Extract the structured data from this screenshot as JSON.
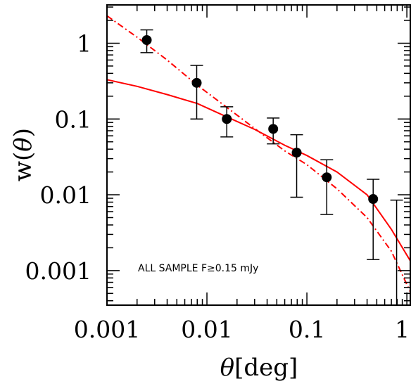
{
  "chart_data": {
    "type": "scatter",
    "xlabel_symbol": "θ",
    "xlabel_unit": "[deg]",
    "ylabel_prefix": "w(",
    "ylabel_symbol": "θ",
    "ylabel_suffix": ")",
    "x_scale": "log",
    "y_scale": "log",
    "xlim": [
      0.001,
      1.1
    ],
    "ylim": [
      0.00035,
      3.2
    ],
    "x_ticks": [
      {
        "value": 0.001,
        "label": "0.001"
      },
      {
        "value": 0.01,
        "label": "0.01"
      },
      {
        "value": 0.1,
        "label": "0.1"
      },
      {
        "value": 1,
        "label": "1"
      }
    ],
    "y_ticks": [
      {
        "value": 1,
        "label": "1"
      },
      {
        "value": 0.1,
        "label": "0.1"
      },
      {
        "value": 0.01,
        "label": "0.01"
      },
      {
        "value": 0.001,
        "label": "0.001"
      }
    ],
    "grid": false,
    "annotation": "ALL SAMPLE F≥0.15 mJy",
    "points": [
      {
        "x": 0.0025,
        "y": 1.1,
        "err_low": 0.75,
        "err_high": 1.5
      },
      {
        "x": 0.0079,
        "y": 0.3,
        "err_low": 0.1,
        "err_high": 0.51
      },
      {
        "x": 0.0158,
        "y": 0.1,
        "err_low": 0.058,
        "err_high": 0.145
      },
      {
        "x": 0.046,
        "y": 0.074,
        "err_low": 0.047,
        "err_high": 0.103
      },
      {
        "x": 0.079,
        "y": 0.036,
        "err_low": 0.0093,
        "err_high": 0.062
      },
      {
        "x": 0.158,
        "y": 0.017,
        "err_low": 0.0055,
        "err_high": 0.029
      },
      {
        "x": 0.46,
        "y": 0.0088,
        "err_low": 0.0014,
        "err_high": 0.016
      },
      {
        "x": 0.79,
        "y": null,
        "err_low": null,
        "err_high": 0.0085
      }
    ],
    "series": [
      {
        "style": "solid",
        "color": "#ff0000",
        "x": [
          0.001,
          0.002,
          0.004,
          0.008,
          0.015,
          0.03,
          0.06,
          0.1,
          0.2,
          0.4,
          0.7,
          1.1
        ],
        "y": [
          0.33,
          0.27,
          0.21,
          0.16,
          0.11,
          0.073,
          0.045,
          0.033,
          0.02,
          0.01,
          0.0035,
          0.0013
        ]
      },
      {
        "style": "dashed",
        "color": "#ff0000",
        "x": [
          0.001,
          0.002,
          0.004,
          0.008,
          0.015,
          0.03,
          0.06,
          0.1,
          0.2,
          0.4,
          0.7,
          1.1
        ],
        "y": [
          2.3,
          1.2,
          0.6,
          0.28,
          0.15,
          0.075,
          0.038,
          0.025,
          0.012,
          0.005,
          0.0018,
          0.0005
        ]
      }
    ]
  }
}
